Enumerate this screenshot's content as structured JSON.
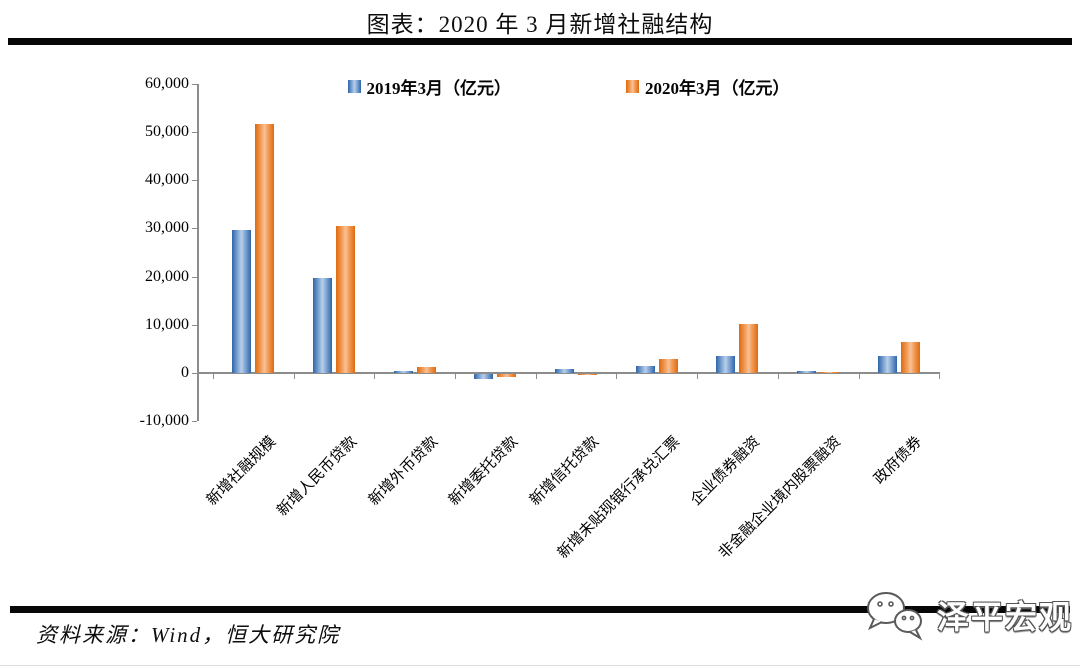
{
  "page": {
    "title": "图表：2020 年 3 月新增社融结构",
    "source": "资料来源：Wind，恒大研究院",
    "watermark": "泽平宏观"
  },
  "colors": {
    "series_2019_blue": "#4f81bd",
    "series_2020_orange": "#ed7d31",
    "axis_gray": "#8c8c8c",
    "rule_black": "#070707"
  },
  "chart_data": {
    "type": "bar",
    "title": "图表：2020 年 3 月新增社融结构",
    "categories": [
      "新增社融规模",
      "新增人民币贷款",
      "新增外币贷款",
      "新增委托贷款",
      "新增信托贷款",
      "新增未贴现银行承兑汇票",
      "企业债券融资",
      "非金融企业境内股票融资",
      "政府债券"
    ],
    "series": [
      {
        "name": "2019年3月（亿元）",
        "color": "#4f81bd",
        "values": [
          29700,
          19600,
          300,
          -1100,
          700,
          1500,
          3500,
          300,
          3600
        ]
      },
      {
        "name": "2020年3月（亿元）",
        "color": "#ed7d31",
        "values": [
          51700,
          30500,
          1300,
          -600,
          -300,
          2900,
          10100,
          200,
          6400
        ]
      }
    ],
    "xlabel": "",
    "ylabel": "",
    "ylim": [
      -10000,
      60000
    ],
    "ytick_values": [
      60000,
      50000,
      40000,
      30000,
      20000,
      10000,
      0,
      -10000
    ],
    "ytick_labels": [
      "60,000",
      "50,000",
      "40,000",
      "30,000",
      "20,000",
      "10,000",
      "0",
      "-10,000"
    ],
    "grid": false,
    "legend_position": "top-inside"
  }
}
